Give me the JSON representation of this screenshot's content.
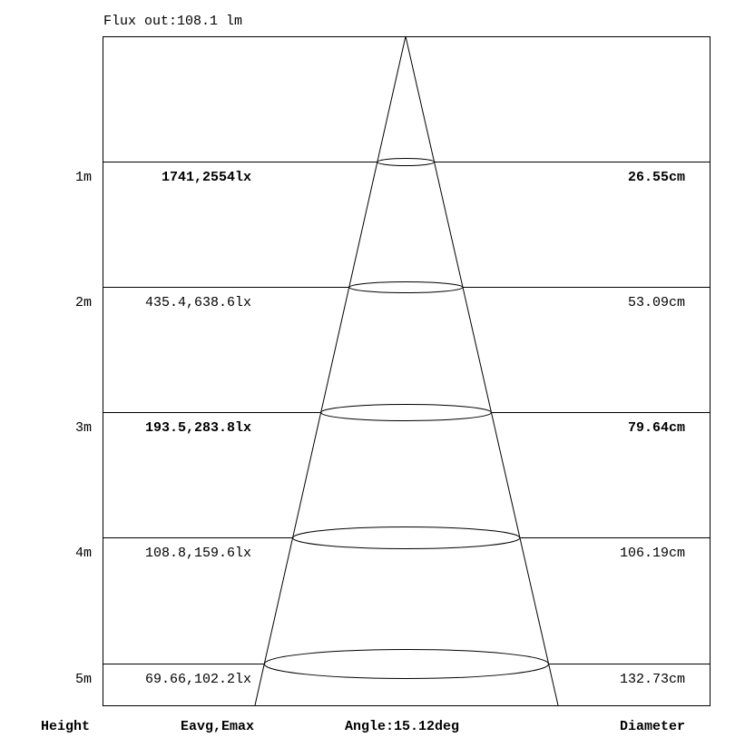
{
  "flux_label": "Flux out:108.1 lm",
  "angle_label": "Angle:15.12deg",
  "footer": {
    "height": "Height",
    "eavg_emax": "Eavg,Emax",
    "diameter": "Diameter"
  },
  "beam_angle_deg": 15.12,
  "rows": [
    {
      "height": "1m",
      "illuminance": "1741,2554lx",
      "diameter": "26.55cm",
      "bold": true
    },
    {
      "height": "2m",
      "illuminance": "435.4,638.6lx",
      "diameter": "53.09cm",
      "bold": false
    },
    {
      "height": "3m",
      "illuminance": "193.5,283.8lx",
      "diameter": "79.64cm",
      "bold": true
    },
    {
      "height": "4m",
      "illuminance": "108.8,159.6lx",
      "diameter": "106.19cm",
      "bold": false
    },
    {
      "height": "5m",
      "illuminance": "69.66,102.2lx",
      "diameter": "132.73cm",
      "bold": false
    }
  ]
}
